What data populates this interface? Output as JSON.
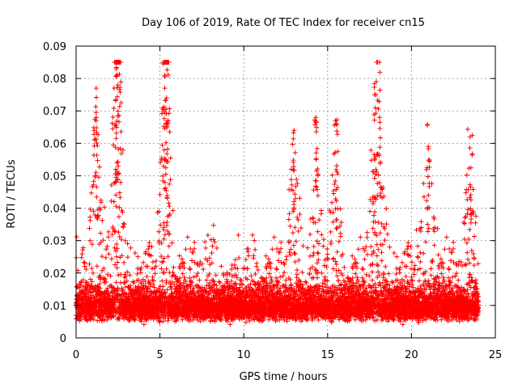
{
  "chart_data": {
    "type": "scatter",
    "title": "Day 106 of 2019, Rate Of TEC Index for receiver cn15",
    "xlabel": "GPS time / hours",
    "ylabel": "ROTI / TECUs",
    "xlim": [
      0,
      25
    ],
    "ylim": [
      0,
      0.09
    ],
    "x_ticks": [
      "0",
      "5",
      "10",
      "15",
      "20",
      "25"
    ],
    "y_ticks": [
      "0",
      "0.01",
      "0.02",
      "0.03",
      "0.04",
      "0.05",
      "0.06",
      "0.07",
      "0.08",
      "0.09"
    ],
    "grid": true,
    "marker": "plus",
    "color": "#ff0000",
    "series": [
      {
        "name": "ROTI",
        "x_range_hours": [
          0,
          24
        ],
        "sample_interval_hours": 0.005,
        "typical_range": [
          0.003,
          0.03
        ],
        "baseline_median": 0.01,
        "notable_peaks": [
          {
            "x": 1.2,
            "y": 0.077
          },
          {
            "x": 2.4,
            "y": 0.083
          },
          {
            "x": 2.5,
            "y": 0.078
          },
          {
            "x": 5.3,
            "y": 0.081
          },
          {
            "x": 5.4,
            "y": 0.074
          },
          {
            "x": 13.0,
            "y": 0.064
          },
          {
            "x": 14.3,
            "y": 0.068
          },
          {
            "x": 15.5,
            "y": 0.066
          },
          {
            "x": 17.8,
            "y": 0.075
          },
          {
            "x": 18.1,
            "y": 0.068
          },
          {
            "x": 21.0,
            "y": 0.059
          },
          {
            "x": 23.5,
            "y": 0.062
          }
        ]
      }
    ]
  }
}
